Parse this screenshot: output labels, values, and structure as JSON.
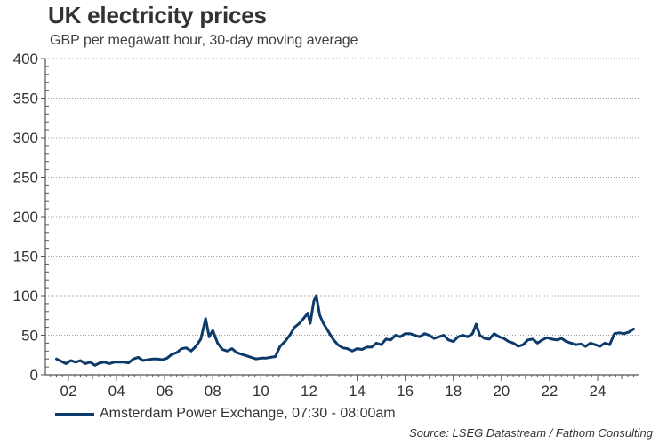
{
  "chart_data": {
    "type": "line",
    "title": "UK electricity prices",
    "subtitle": "GBP per megawatt hour, 30-day moving average",
    "xlabel": "",
    "ylabel": "",
    "ylim": [
      0,
      400
    ],
    "xlim": [
      2000.6,
      2026.3
    ],
    "yticks": [
      0,
      50,
      100,
      150,
      200,
      250,
      300,
      350,
      400
    ],
    "ytick_labels": [
      "0",
      "50",
      "100",
      "150",
      "200",
      "250",
      "300",
      "350",
      "400"
    ],
    "xticks": [
      2002,
      2004,
      2006,
      2008,
      2010,
      2012,
      2014,
      2016,
      2018,
      2020,
      2022,
      2024
    ],
    "xtick_labels": [
      "02",
      "04",
      "06",
      "08",
      "10",
      "12",
      "14",
      "16",
      "18",
      "20",
      "22",
      "24"
    ],
    "grid": "horizontal-dotted",
    "legend_position": "bottom-left",
    "series": [
      {
        "name": "Amsterdam Power Exchange, 07:30 - 08:00am",
        "color": "#0b3a6b",
        "points": [
          [
            2001.5,
            20
          ],
          [
            2001.7,
            17
          ],
          [
            2001.9,
            14
          ],
          [
            2002.1,
            18
          ],
          [
            2002.3,
            16
          ],
          [
            2002.5,
            18
          ],
          [
            2002.7,
            14
          ],
          [
            2002.9,
            16
          ],
          [
            2003.1,
            12
          ],
          [
            2003.3,
            15
          ],
          [
            2003.5,
            16
          ],
          [
            2003.7,
            14
          ],
          [
            2003.9,
            16
          ],
          [
            2004.1,
            16
          ],
          [
            2004.3,
            16
          ],
          [
            2004.5,
            15
          ],
          [
            2004.7,
            20
          ],
          [
            2004.9,
            22
          ],
          [
            2005.1,
            18
          ],
          [
            2005.3,
            19
          ],
          [
            2005.5,
            20
          ],
          [
            2005.7,
            20
          ],
          [
            2005.9,
            19
          ],
          [
            2006.1,
            21
          ],
          [
            2006.3,
            26
          ],
          [
            2006.5,
            28
          ],
          [
            2006.7,
            33
          ],
          [
            2006.9,
            34
          ],
          [
            2007.1,
            30
          ],
          [
            2007.3,
            36
          ],
          [
            2007.5,
            45
          ],
          [
            2007.7,
            71
          ],
          [
            2007.85,
            48
          ],
          [
            2008.0,
            56
          ],
          [
            2008.2,
            40
          ],
          [
            2008.4,
            32
          ],
          [
            2008.6,
            30
          ],
          [
            2008.8,
            33
          ],
          [
            2009.0,
            28
          ],
          [
            2009.2,
            26
          ],
          [
            2009.4,
            24
          ],
          [
            2009.6,
            22
          ],
          [
            2009.8,
            20
          ],
          [
            2010.0,
            21
          ],
          [
            2010.2,
            21
          ],
          [
            2010.4,
            22
          ],
          [
            2010.6,
            23
          ],
          [
            2010.8,
            36
          ],
          [
            2011.0,
            42
          ],
          [
            2011.2,
            50
          ],
          [
            2011.4,
            60
          ],
          [
            2011.6,
            65
          ],
          [
            2011.8,
            72
          ],
          [
            2011.95,
            78
          ],
          [
            2012.05,
            65
          ],
          [
            2012.2,
            93
          ],
          [
            2012.3,
            100
          ],
          [
            2012.45,
            75
          ],
          [
            2012.6,
            65
          ],
          [
            2012.8,
            55
          ],
          [
            2013.0,
            45
          ],
          [
            2013.2,
            38
          ],
          [
            2013.4,
            34
          ],
          [
            2013.6,
            33
          ],
          [
            2013.8,
            30
          ],
          [
            2014.0,
            33
          ],
          [
            2014.2,
            32
          ],
          [
            2014.4,
            35
          ],
          [
            2014.6,
            35
          ],
          [
            2014.8,
            40
          ],
          [
            2015.0,
            38
          ],
          [
            2015.2,
            45
          ],
          [
            2015.4,
            44
          ],
          [
            2015.6,
            50
          ],
          [
            2015.8,
            48
          ],
          [
            2016.0,
            52
          ],
          [
            2016.2,
            52
          ],
          [
            2016.4,
            50
          ],
          [
            2016.6,
            48
          ],
          [
            2016.8,
            52
          ],
          [
            2017.0,
            50
          ],
          [
            2017.2,
            46
          ],
          [
            2017.4,
            48
          ],
          [
            2017.6,
            50
          ],
          [
            2017.8,
            44
          ],
          [
            2018.0,
            42
          ],
          [
            2018.2,
            48
          ],
          [
            2018.4,
            50
          ],
          [
            2018.6,
            48
          ],
          [
            2018.8,
            52
          ],
          [
            2018.95,
            64
          ],
          [
            2019.1,
            50
          ],
          [
            2019.3,
            46
          ],
          [
            2019.5,
            45
          ],
          [
            2019.7,
            52
          ],
          [
            2019.9,
            48
          ],
          [
            2020.1,
            46
          ],
          [
            2020.3,
            42
          ],
          [
            2020.5,
            40
          ],
          [
            2020.7,
            36
          ],
          [
            2020.9,
            38
          ],
          [
            2021.1,
            44
          ],
          [
            2021.3,
            45
          ],
          [
            2021.5,
            40
          ],
          [
            2021.7,
            44
          ],
          [
            2021.9,
            47
          ],
          [
            2022.1,
            45
          ],
          [
            2022.3,
            44
          ],
          [
            2022.5,
            46
          ],
          [
            2022.7,
            42
          ],
          [
            2022.9,
            40
          ],
          [
            2023.1,
            38
          ],
          [
            2023.3,
            39
          ],
          [
            2023.5,
            36
          ],
          [
            2023.7,
            40
          ],
          [
            2023.9,
            38
          ],
          [
            2024.1,
            36
          ],
          [
            2024.3,
            40
          ],
          [
            2024.5,
            38
          ],
          [
            2024.7,
            52
          ],
          [
            2024.9,
            53
          ],
          [
            2025.1,
            52
          ],
          [
            2025.3,
            54
          ],
          [
            2025.5,
            58
          ]
        ]
      }
    ]
  },
  "legend": {
    "label": "Amsterdam Power Exchange, 07:30 - 08:00am"
  },
  "source": "Source: LSEG Datastream / Fathom Consulting"
}
